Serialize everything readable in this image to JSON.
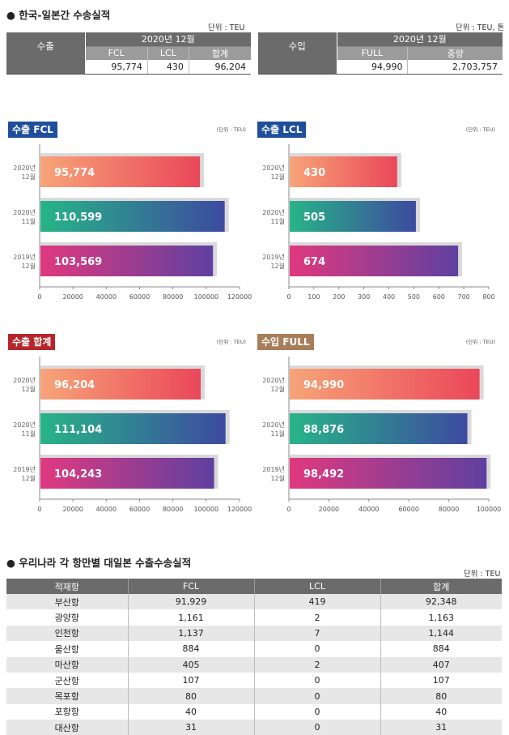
{
  "top": {
    "title": "● 한국-일본간 수송실적",
    "export": {
      "unit": "단위 : TEU",
      "label": "수출",
      "period": "2020년 12월",
      "headers": [
        "FCL",
        "LCL",
        "합계"
      ],
      "values": [
        "95,774",
        "430",
        "96,204"
      ]
    },
    "import": {
      "unit": "단위 : TEU, 톤",
      "label": "수입",
      "period": "2020년 12월",
      "headers": [
        "FULL",
        "중량"
      ],
      "values": [
        "94,990",
        "2,703,757"
      ]
    }
  },
  "chart_data": [
    {
      "type": "bar",
      "orientation": "horizontal",
      "title": "수출 FCL",
      "unit": "(단위 : TEU)",
      "badge_color": "#1f4e9c",
      "categories": [
        [
          "2020년",
          "12월"
        ],
        [
          "2020년",
          "11월"
        ],
        [
          "2019년",
          "12월"
        ]
      ],
      "values": [
        95774,
        110599,
        103569
      ],
      "labels": [
        "95,774",
        "110,599",
        "103,569"
      ],
      "xlim": [
        0,
        120000
      ],
      "ticks": [
        0,
        20000,
        40000,
        60000,
        80000,
        100000,
        120000
      ],
      "tick_labels": [
        "0",
        "20000",
        "40000",
        "60000",
        "80000",
        "100000",
        "120000"
      ]
    },
    {
      "type": "bar",
      "orientation": "horizontal",
      "title": "수출 LCL",
      "unit": "(단위 : TEU)",
      "badge_color": "#1f4e9c",
      "categories": [
        [
          "2020년",
          "12월"
        ],
        [
          "2020년",
          "11월"
        ],
        [
          "2019년",
          "12월"
        ]
      ],
      "values": [
        430,
        505,
        674
      ],
      "labels": [
        "430",
        "505",
        "674"
      ],
      "xlim": [
        0,
        800
      ],
      "ticks": [
        0,
        100,
        200,
        300,
        400,
        500,
        600,
        700,
        800
      ],
      "tick_labels": [
        "0",
        "100",
        "200",
        "300",
        "400",
        "500",
        "600",
        "700",
        "800"
      ]
    },
    {
      "type": "bar",
      "orientation": "horizontal",
      "title": "수출 합계",
      "unit": "(단위 : TEU)",
      "badge_color": "#b5262b",
      "categories": [
        [
          "2020년",
          "12월"
        ],
        [
          "2020년",
          "11월"
        ],
        [
          "2019년",
          "12월"
        ]
      ],
      "values": [
        96204,
        111104,
        104243
      ],
      "labels": [
        "96,204",
        "111,104",
        "104,243"
      ],
      "xlim": [
        0,
        120000
      ],
      "ticks": [
        0,
        20000,
        40000,
        60000,
        80000,
        100000,
        120000
      ],
      "tick_labels": [
        "0",
        "20000",
        "40000",
        "60000",
        "80000",
        "100000",
        "120000"
      ]
    },
    {
      "type": "bar",
      "orientation": "horizontal",
      "title": "수입 FULL",
      "unit": "(단위 : TEU)",
      "badge_color": "#a87d5a",
      "categories": [
        [
          "2020년",
          "12월"
        ],
        [
          "2020년",
          "11월"
        ],
        [
          "2019년",
          "12월"
        ]
      ],
      "values": [
        94990,
        88876,
        98492
      ],
      "labels": [
        "94,990",
        "88,876",
        "98,492"
      ],
      "xlim": [
        0,
        100000
      ],
      "ticks": [
        0,
        20000,
        40000,
        60000,
        80000,
        100000
      ],
      "tick_labels": [
        "0",
        "20000",
        "40000",
        "60000",
        "80000",
        "100000"
      ]
    }
  ],
  "bar_gradients": [
    [
      "#f7a478",
      "#ea4759"
    ],
    [
      "#27b487",
      "#3d4aa0"
    ],
    [
      "#e0397f",
      "#5f40a0"
    ]
  ],
  "ports": {
    "title": "● 우리나라 각 항만별 대일본 수출수송실적",
    "unit": "단위 : TEU",
    "headers": [
      "적재항",
      "FCL",
      "LCL",
      "합계"
    ],
    "rows": [
      [
        "부산항",
        "91,929",
        "419",
        "92,348"
      ],
      [
        "광양항",
        "1,161",
        "2",
        "1,163"
      ],
      [
        "인천항",
        "1,137",
        "7",
        "1,144"
      ],
      [
        "울산항",
        "884",
        "0",
        "884"
      ],
      [
        "마산항",
        "405",
        "2",
        "407"
      ],
      [
        "군산항",
        "107",
        "0",
        "107"
      ],
      [
        "목포항",
        "80",
        "0",
        "80"
      ],
      [
        "포항항",
        "40",
        "0",
        "40"
      ],
      [
        "대산항",
        "31",
        "0",
        "31"
      ]
    ]
  }
}
